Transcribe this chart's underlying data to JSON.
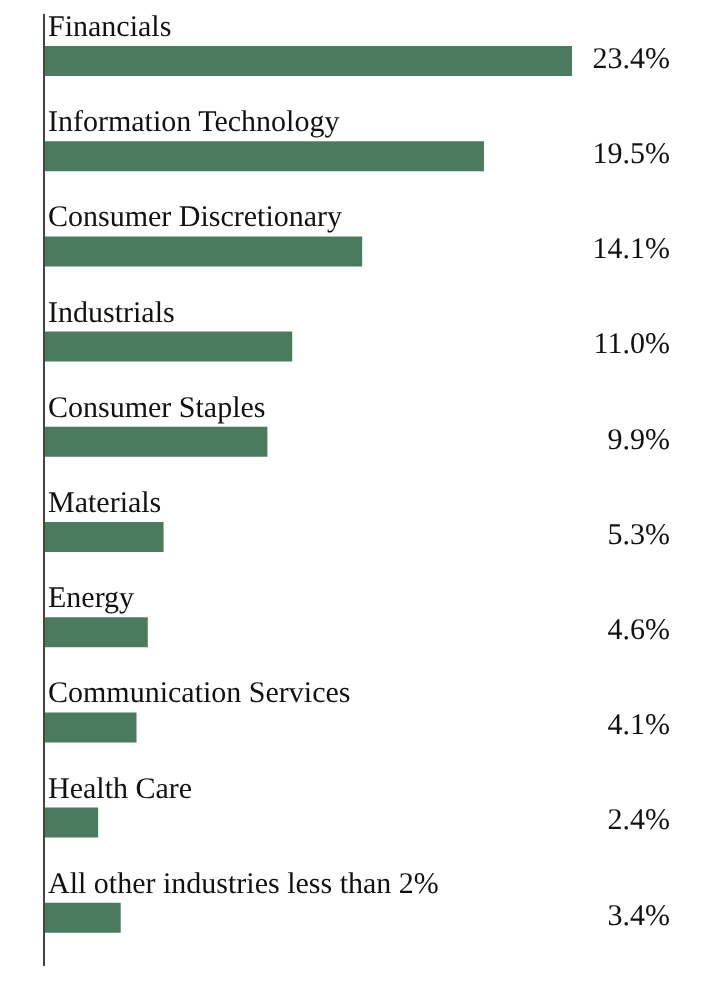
{
  "chart_data": {
    "type": "bar",
    "orientation": "horizontal",
    "categories": [
      "Financials",
      "Information Technology",
      "Consumer Discretionary",
      "Industrials",
      "Consumer Staples",
      "Materials",
      "Energy",
      "Communication Services",
      "Health Care",
      "All other industries less than 2%"
    ],
    "values": [
      23.4,
      19.5,
      14.1,
      11.0,
      9.9,
      5.3,
      4.6,
      4.1,
      2.4,
      3.4
    ],
    "value_labels": [
      "23.4%",
      "19.5%",
      "14.1%",
      "11.0%",
      "9.9%",
      "5.3%",
      "4.6%",
      "4.1%",
      "2.4%",
      "3.4%"
    ],
    "color": "#4b7b5f",
    "grid": false,
    "legend": false
  }
}
